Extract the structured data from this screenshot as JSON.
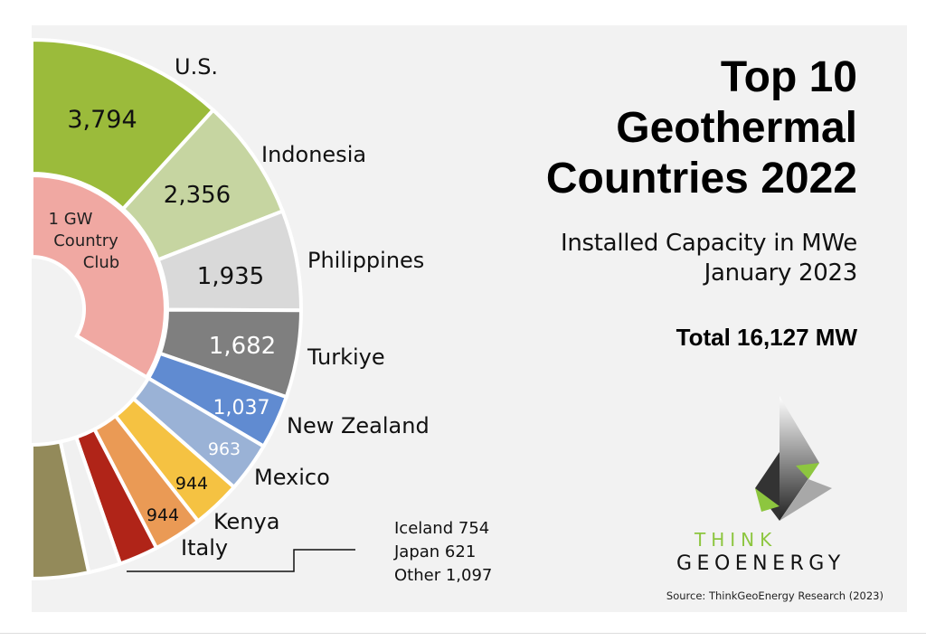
{
  "title": [
    "Top 10",
    "Geothermal",
    "Countries 2022"
  ],
  "subtitle": [
    "Installed Capacity in MWe",
    "January 2023"
  ],
  "total": "Total 16,127 MW",
  "logo": {
    "line1": "THINK",
    "line2": "GEOENERGY",
    "accent": "#8dc63f"
  },
  "source": "Source: ThinkGeoEnergy Research (2023)",
  "chart_data": {
    "type": "pie",
    "style": "half-donut, two rings",
    "unit": "MWe",
    "outer_ring": {
      "categories": [
        "U.S.",
        "Indonesia",
        "Philippines",
        "Turkiye",
        "New Zealand",
        "Mexico",
        "Kenya",
        "Italy",
        "Iceland",
        "Japan",
        "Other"
      ],
      "values": [
        3794,
        2356,
        1935,
        1682,
        1037,
        963,
        944,
        944,
        754,
        621,
        1097
      ],
      "value_labels": [
        "3,794",
        "2,356",
        "1,935",
        "1,682",
        "1,037",
        "963",
        "944",
        "944",
        "",
        "",
        ""
      ],
      "colors": [
        "#9bbb3b",
        "#c6d5a1",
        "#d9d9d9",
        "#7f7f7f",
        "#608bd1",
        "#9ab2d6",
        "#f5c242",
        "#ea9a55",
        "#b02418",
        "#f0f0f0",
        "#938a5a"
      ]
    },
    "inner_ring": {
      "label": [
        "1 GW",
        "Country",
        "Club"
      ],
      "covers": [
        "U.S.",
        "Indonesia",
        "Philippines",
        "Turkiye",
        "New Zealand"
      ],
      "color": "#f0a8a2"
    },
    "grouped_labels": [
      "Iceland 754",
      "Japan 621",
      "Other 1,097"
    ]
  }
}
